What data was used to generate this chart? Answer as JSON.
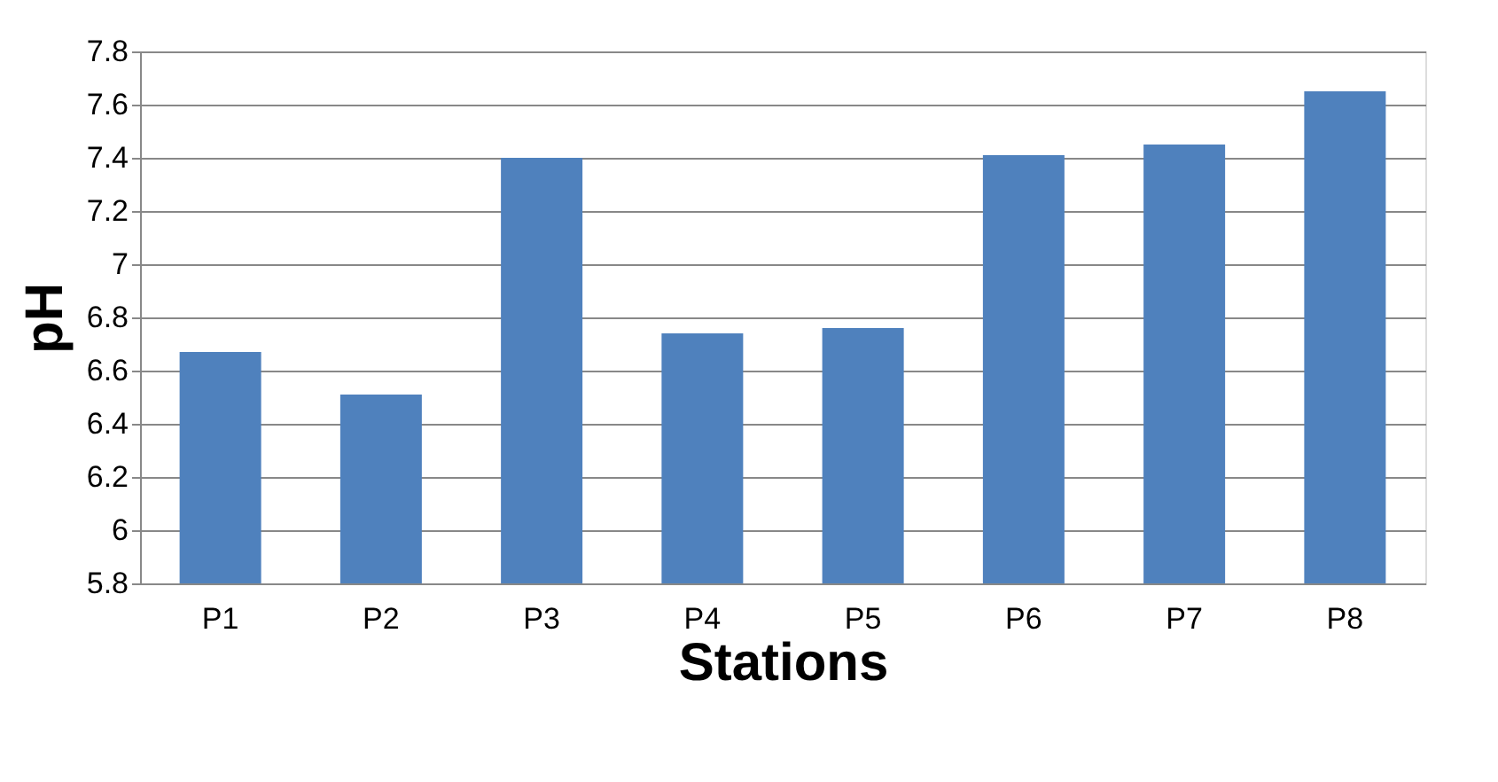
{
  "chart_data": {
    "type": "bar",
    "xlabel": "Stations",
    "ylabel": "pH",
    "categories": [
      "P1",
      "P2",
      "P3",
      "P4",
      "P5",
      "P6",
      "P7",
      "P8"
    ],
    "values": [
      6.67,
      6.51,
      7.4,
      6.74,
      6.76,
      7.41,
      7.45,
      7.65
    ],
    "color": "#4f81bd",
    "ylim": [
      5.8,
      7.8
    ],
    "yticks": [
      5.8,
      6,
      6.2,
      6.4,
      6.6,
      6.8,
      7,
      7.2,
      7.4,
      7.6,
      7.8
    ],
    "grid": "y"
  }
}
